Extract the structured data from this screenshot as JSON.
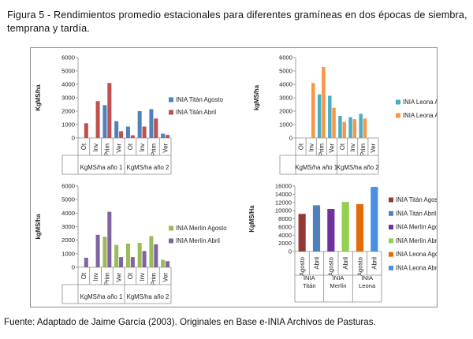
{
  "caption": "Figura 5 - Rendimientos promedio estacionales para diferentes gramíneas en dos épocas de siembra, temprana y tardía.",
  "source": "Fuente: Adaptado de Jaime García (2003). Originales en Base e-INIA Archivos de Pasturas.",
  "chart_data": [
    {
      "type": "bar",
      "ylabel": "KgMS/ha",
      "ylim": [
        0,
        6000
      ],
      "yticks": [
        0,
        1000,
        2000,
        3000,
        4000,
        5000,
        6000
      ],
      "categories": [
        "Ot",
        "Inv",
        "Prim",
        "Ver",
        "Ot",
        "Inv",
        "Prim",
        "Ver"
      ],
      "groups": [
        "KgMS/ha año 1",
        "KgMS/ha año 2"
      ],
      "legend_position": "right",
      "series": [
        {
          "name": "INIA Titán Agosto",
          "color": "#4f81bd",
          "values": [
            0,
            0,
            2450,
            1250,
            850,
            2000,
            2150,
            320
          ]
        },
        {
          "name": "INIA Titán Abril",
          "color": "#c0504d",
          "values": [
            1100,
            2750,
            4100,
            500,
            200,
            850,
            1450,
            230
          ]
        }
      ]
    },
    {
      "type": "bar",
      "ylabel": "kgMS/ha",
      "ylim": [
        0,
        6000
      ],
      "yticks": [
        0,
        1000,
        2000,
        3000,
        4000,
        5000,
        6000
      ],
      "categories": [
        "Ot",
        "Inv",
        "Prim",
        "Ver",
        "Ot",
        "Inv",
        "Prim",
        "Ver"
      ],
      "groups": [
        "KgMS/ha año 1",
        "KgMS/ha año 2"
      ],
      "legend_position": "right",
      "series": [
        {
          "name": "INIA Leona Agosto",
          "color": "#4bacc6",
          "values": [
            0,
            0,
            3250,
            3150,
            1650,
            1550,
            1800,
            0
          ]
        },
        {
          "name": "INIA Leona Abril",
          "color": "#f79646",
          "values": [
            0,
            4100,
            5300,
            2250,
            1200,
            1400,
            1450,
            0
          ]
        }
      ]
    },
    {
      "type": "bar",
      "ylabel": "kgMS/ha",
      "ylim": [
        0,
        6000
      ],
      "yticks": [
        0,
        1000,
        2000,
        3000,
        4000,
        5000,
        6000
      ],
      "categories": [
        "Ot",
        "Inv",
        "Prim",
        "Ver",
        "Ot",
        "Inv",
        "Prim",
        "Ver"
      ],
      "groups": [
        "KgMS/ha año 1",
        "KgMS/ha año 2"
      ],
      "legend_position": "right",
      "series": [
        {
          "name": "INIA Merlín Agosto",
          "color": "#9bbb59",
          "values": [
            0,
            0,
            2250,
            1650,
            1750,
            1800,
            2300,
            550
          ]
        },
        {
          "name": "INIA Merlín Abril",
          "color": "#8064a2",
          "values": [
            700,
            2400,
            4100,
            750,
            750,
            1200,
            1700,
            450
          ]
        }
      ]
    },
    {
      "type": "bar",
      "ylabel": "KgMS/Ha",
      "ylim": [
        0,
        16000
      ],
      "yticks": [
        0,
        2000,
        4000,
        6000,
        8000,
        10000,
        12000,
        14000,
        16000
      ],
      "categories": [
        "Agosto",
        "Abril",
        "Agosto",
        "Abril",
        "Agosto",
        "Abril"
      ],
      "groups": [
        "INIA Titán",
        "INIA Merlín",
        "INIA Leona"
      ],
      "legend_position": "right",
      "series": [
        {
          "name": "INIA Titán Agosto",
          "color": "#953735",
          "values": [
            9200,
            0,
            0,
            0,
            0,
            0
          ]
        },
        {
          "name": "INIA Titán Abril",
          "color": "#4f81bd",
          "values": [
            0,
            11300,
            0,
            0,
            0,
            0
          ]
        },
        {
          "name": "INIA Merlín Agosto",
          "color": "#7030a0",
          "values": [
            0,
            0,
            10400,
            0,
            0,
            0
          ]
        },
        {
          "name": "INIA Merlín Abril",
          "color": "#92d050",
          "values": [
            0,
            0,
            0,
            12100,
            0,
            0
          ]
        },
        {
          "name": "INIA Leona Agosto",
          "color": "#e46c0a",
          "values": [
            0,
            0,
            0,
            0,
            11600,
            0
          ]
        },
        {
          "name": "INIA Leona Abril",
          "color": "#4a90e2",
          "values": [
            0,
            0,
            0,
            0,
            0,
            15800
          ]
        }
      ]
    }
  ]
}
